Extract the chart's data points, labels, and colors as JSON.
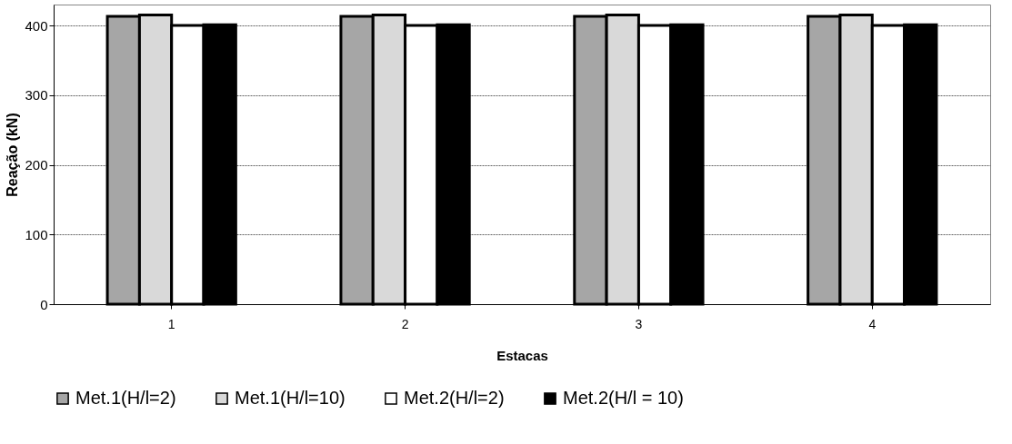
{
  "chart_data": {
    "type": "bar",
    "xlabel": "Estacas",
    "ylabel": "Reação (kN)",
    "categories": [
      "1",
      "2",
      "3",
      "4"
    ],
    "series": [
      {
        "name": "Met.1(H/l=2)",
        "color": "#a6a6a6",
        "values": [
          413,
          413,
          413,
          413
        ]
      },
      {
        "name": "Met.1(H/l=10)",
        "color": "#d9d9d9",
        "values": [
          415,
          415,
          415,
          415
        ]
      },
      {
        "name": "Met.2(H/l=2)",
        "color": "#ffffff",
        "values": [
          400,
          400,
          400,
          400
        ]
      },
      {
        "name": "Met.2(H/l = 10)",
        "color": "#000000",
        "values": [
          401,
          401,
          401,
          401
        ]
      }
    ],
    "ylim": [
      0,
      430
    ],
    "yticks": [
      0,
      100,
      200,
      300,
      400
    ],
    "grid": "y",
    "legend": "bottom"
  }
}
